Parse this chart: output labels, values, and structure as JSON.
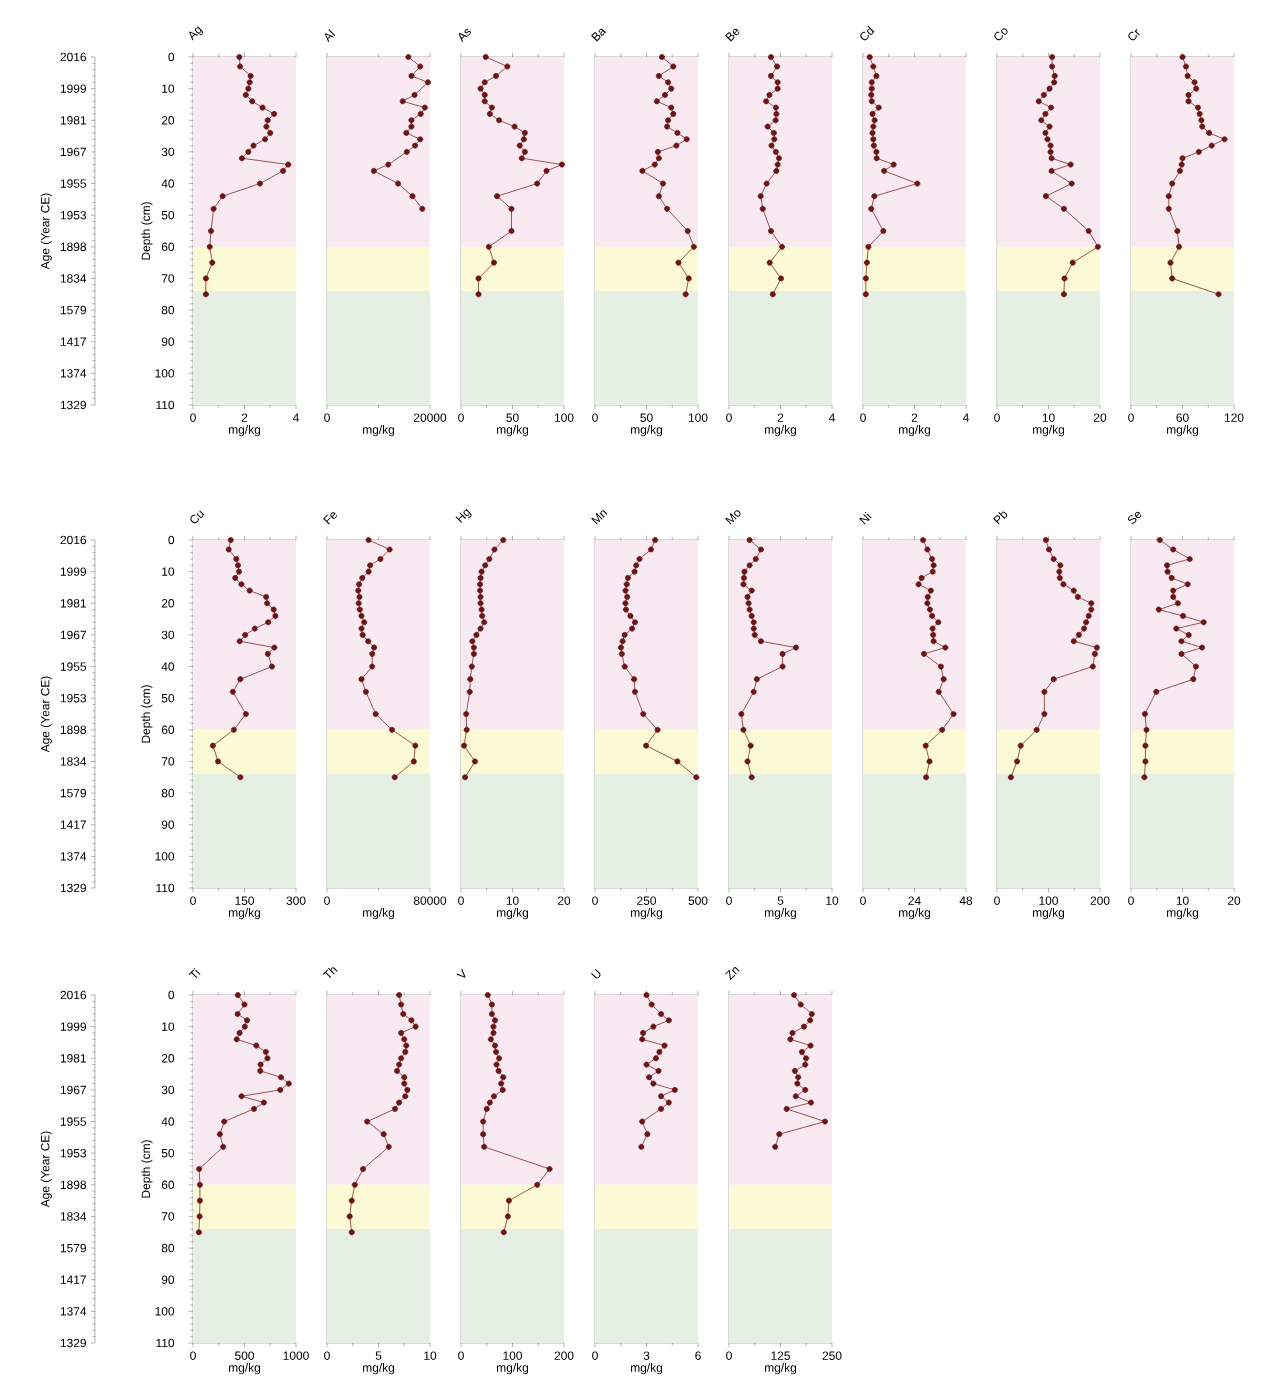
{
  "chart_data": [
    {
      "type": "line",
      "title": "Ag",
      "xlabel": "mg/kg",
      "ylabel": "Depth (cm)",
      "y2label": "Age (Year CE)",
      "xlim": [
        0,
        4
      ],
      "xticks": [
        0,
        2,
        4
      ],
      "ylim": [
        110,
        0
      ],
      "yticks": [
        0,
        10,
        20,
        30,
        40,
        50,
        60,
        70,
        80,
        90,
        100,
        110
      ],
      "y2_categories": [
        "2016",
        "1999",
        "1981",
        "1967",
        "1955",
        "1953",
        "1898",
        "1834",
        "1579",
        "1417",
        "1374",
        "1329"
      ],
      "marker": "circle",
      "bands": [
        {
          "axis": "y",
          "from": 0,
          "to": 60,
          "color": "#f9e9f1"
        },
        {
          "axis": "y",
          "from": 60,
          "to": 74,
          "color": "#fcfad4"
        },
        {
          "axis": "y",
          "from": 74,
          "to": 110,
          "color": "#e5efe3"
        }
      ],
      "series": [
        {
          "color": "#6b1515",
          "x": [
            1.8,
            1.83,
            2.24,
            2.2,
            2.15,
            2.05,
            2.3,
            2.7,
            3.15,
            2.9,
            2.85,
            3.0,
            2.8,
            2.35,
            2.15,
            1.9,
            3.7,
            3.5,
            2.6,
            1.15,
            0.8,
            0.7,
            0.65,
            0.75,
            0.5,
            0.5
          ],
          "values": [
            0,
            3,
            6,
            8,
            10,
            12,
            14,
            16,
            18,
            20,
            22,
            24,
            26,
            28,
            30,
            32,
            34,
            36,
            40,
            44,
            48,
            55,
            60,
            65,
            70,
            75
          ]
        }
      ]
    },
    {
      "type": "line",
      "title": "Al",
      "xlabel": "mg/kg",
      "xlim": [
        0,
        20000
      ],
      "xticks": [
        0,
        20000
      ],
      "ylim": [
        110,
        0
      ],
      "tick_labels": "x",
      "marker": "circle",
      "bands": [
        {
          "axis": "y",
          "from": 0,
          "to": 60,
          "color": "#f9e9f1"
        },
        {
          "axis": "y",
          "from": 60,
          "to": 74,
          "color": "#fcfad4"
        },
        {
          "axis": "y",
          "from": 74,
          "to": 110,
          "color": "#e5efe3"
        }
      ],
      "series": [
        {
          "color": "#6b1515",
          "x": [
            15800,
            18100,
            16400,
            19600,
            17000,
            14700,
            19000,
            18200,
            16400,
            16400,
            15400,
            18100,
            17100,
            15500,
            11900,
            9100,
            13800,
            16600,
            18500
          ],
          "values": [
            0,
            3,
            6,
            8,
            12,
            14,
            16,
            18,
            20,
            22,
            24,
            26,
            28,
            30,
            34,
            36,
            40,
            44,
            48
          ]
        }
      ]
    },
    {
      "type": "line",
      "title": "As",
      "xlabel": "mg/kg",
      "xlim": [
        0,
        100
      ],
      "xticks": [
        0,
        50,
        100
      ],
      "ylim": [
        110,
        0
      ],
      "tick_labels": "x",
      "marker": "circle",
      "bands": [
        {
          "axis": "y",
          "from": 0,
          "to": 60,
          "color": "#f9e9f1"
        },
        {
          "axis": "y",
          "from": 60,
          "to": 74,
          "color": "#fcfad4"
        },
        {
          "axis": "y",
          "from": 74,
          "to": 110,
          "color": "#e5efe3"
        }
      ],
      "series": [
        {
          "color": "#6b1515",
          "x": [
            24,
            45,
            34,
            23,
            19,
            23,
            23,
            30,
            28,
            37,
            52,
            62,
            61,
            57,
            62,
            59,
            98,
            83,
            74,
            35,
            49,
            49,
            27,
            32,
            17,
            17
          ],
          "values": [
            0,
            3,
            6,
            8,
            10,
            12,
            14,
            16,
            18,
            20,
            22,
            24,
            26,
            28,
            30,
            32,
            34,
            36,
            40,
            44,
            48,
            55,
            60,
            65,
            70,
            75
          ]
        }
      ]
    },
    {
      "type": "line",
      "title": "Ba",
      "xlabel": "mg/kg",
      "xlim": [
        0,
        100
      ],
      "xticks": [
        0,
        50,
        100
      ],
      "ylim": [
        110,
        0
      ],
      "tick_labels": "x",
      "marker": "circle",
      "bands": [
        {
          "axis": "y",
          "from": 0,
          "to": 60,
          "color": "#f9e9f1"
        },
        {
          "axis": "y",
          "from": 60,
          "to": 74,
          "color": "#fcfad4"
        },
        {
          "axis": "y",
          "from": 74,
          "to": 110,
          "color": "#e5efe3"
        }
      ],
      "series": [
        {
          "color": "#6b1515",
          "x": [
            65,
            76,
            62,
            71,
            74,
            68,
            60,
            74,
            76,
            71,
            70,
            80,
            89,
            79,
            61,
            62,
            58,
            46,
            66,
            62,
            70,
            90,
            96,
            81,
            91,
            88
          ],
          "values": [
            0,
            3,
            6,
            8,
            10,
            12,
            14,
            16,
            18,
            20,
            22,
            24,
            26,
            28,
            30,
            32,
            34,
            36,
            40,
            44,
            48,
            55,
            60,
            65,
            70,
            75
          ]
        }
      ]
    },
    {
      "type": "line",
      "title": "Be",
      "xlabel": "mg/kg",
      "xlim": [
        0,
        4
      ],
      "xticks": [
        0,
        2,
        4
      ],
      "ylim": [
        110,
        0
      ],
      "tick_labels": "x",
      "marker": "circle",
      "bands": [
        {
          "axis": "y",
          "from": 0,
          "to": 60,
          "color": "#f9e9f1"
        },
        {
          "axis": "y",
          "from": 60,
          "to": 74,
          "color": "#fcfad4"
        },
        {
          "axis": "y",
          "from": 74,
          "to": 110,
          "color": "#e5efe3"
        }
      ],
      "series": [
        {
          "color": "#6b1515",
          "x": [
            1.63,
            1.87,
            1.63,
            1.89,
            1.89,
            1.57,
            1.44,
            1.82,
            1.84,
            1.81,
            1.5,
            1.74,
            1.76,
            1.65,
            1.82,
            1.94,
            1.89,
            1.84,
            1.46,
            1.23,
            1.31,
            1.63,
            2.06,
            1.58,
            2.02,
            1.7
          ],
          "values": [
            0,
            3,
            6,
            8,
            10,
            12,
            14,
            16,
            18,
            20,
            22,
            24,
            26,
            28,
            30,
            32,
            34,
            36,
            40,
            44,
            48,
            55,
            60,
            65,
            70,
            75
          ]
        }
      ]
    },
    {
      "type": "line",
      "title": "Cd",
      "xlabel": "mg/kg",
      "xlim": [
        0,
        4
      ],
      "xticks": [
        0,
        2,
        4
      ],
      "ylim": [
        110,
        0
      ],
      "tick_labels": "x",
      "marker": "circle",
      "bands": [
        {
          "axis": "y",
          "from": 0,
          "to": 60,
          "color": "#f9e9f1"
        },
        {
          "axis": "y",
          "from": 60,
          "to": 74,
          "color": "#fcfad4"
        },
        {
          "axis": "y",
          "from": 74,
          "to": 110,
          "color": "#e5efe3"
        }
      ],
      "series": [
        {
          "color": "#6b1515",
          "x": [
            0.26,
            0.4,
            0.52,
            0.34,
            0.34,
            0.32,
            0.34,
            0.61,
            0.37,
            0.45,
            0.4,
            0.37,
            0.4,
            0.42,
            0.52,
            0.53,
            1.19,
            0.82,
            2.11,
            0.44,
            0.32,
            0.79,
            0.21,
            0.15,
            0.11,
            0.11
          ],
          "values": [
            0,
            3,
            6,
            8,
            10,
            12,
            14,
            16,
            18,
            20,
            22,
            24,
            26,
            28,
            30,
            32,
            34,
            36,
            40,
            44,
            48,
            55,
            60,
            65,
            70,
            75
          ]
        }
      ]
    },
    {
      "type": "line",
      "title": "Co",
      "xlabel": "mg/kg",
      "xlim": [
        0,
        20
      ],
      "xticks": [
        0,
        10,
        20
      ],
      "ylim": [
        110,
        0
      ],
      "tick_labels": "x",
      "marker": "circle",
      "bands": [
        {
          "axis": "y",
          "from": 0,
          "to": 60,
          "color": "#f9e9f1"
        },
        {
          "axis": "y",
          "from": 60,
          "to": 74,
          "color": "#fcfad4"
        },
        {
          "axis": "y",
          "from": 74,
          "to": 110,
          "color": "#e5efe3"
        }
      ],
      "series": [
        {
          "color": "#6b1515",
          "x": [
            10.7,
            10.7,
            11.2,
            11.1,
            10.2,
            9.1,
            8.1,
            10.5,
            9.4,
            8.6,
            10.2,
            9.4,
            9.8,
            10.4,
            10.4,
            10.6,
            14.3,
            10.6,
            14.5,
            9.5,
            13,
            17.8,
            19.6,
            14.7,
            13.1,
            13
          ],
          "values": [
            0,
            3,
            6,
            8,
            10,
            12,
            14,
            16,
            18,
            20,
            22,
            24,
            26,
            28,
            30,
            32,
            34,
            36,
            40,
            44,
            48,
            55,
            60,
            65,
            70,
            75
          ]
        }
      ]
    },
    {
      "type": "line",
      "title": "Cr",
      "xlabel": "mg/kg",
      "xlim": [
        0,
        120
      ],
      "xticks": [
        0,
        60,
        120
      ],
      "ylim": [
        110,
        0
      ],
      "tick_labels": "x",
      "marker": "circle",
      "bands": [
        {
          "axis": "y",
          "from": 0,
          "to": 60,
          "color": "#f9e9f1"
        },
        {
          "axis": "y",
          "from": 60,
          "to": 74,
          "color": "#fcfad4"
        },
        {
          "axis": "y",
          "from": 74,
          "to": 110,
          "color": "#e5efe3"
        }
      ],
      "series": [
        {
          "color": "#6b1515",
          "x": [
            60,
            64,
            66,
            74,
            76,
            67,
            67,
            78,
            80,
            82,
            83,
            91,
            109,
            94,
            79,
            60,
            59,
            57,
            48,
            44,
            44,
            54,
            56,
            46,
            48,
            102
          ],
          "values": [
            0,
            3,
            6,
            8,
            10,
            12,
            14,
            16,
            18,
            20,
            22,
            24,
            26,
            28,
            30,
            32,
            34,
            36,
            40,
            44,
            48,
            55,
            60,
            65,
            70,
            75
          ]
        }
      ]
    },
    {
      "type": "line",
      "title": "Cu",
      "xlabel": "mg/kg",
      "ylabel": "Depth (cm)",
      "y2label": "Age (Year CE)",
      "xlim": [
        0,
        300
      ],
      "xticks": [
        0,
        150,
        300
      ],
      "ylim": [
        110,
        0
      ],
      "yticks": [
        0,
        10,
        20,
        30,
        40,
        50,
        60,
        70,
        80,
        90,
        100,
        110
      ],
      "y2_categories": [
        "2016",
        "1999",
        "1981",
        "1967",
        "1955",
        "1953",
        "1898",
        "1834",
        "1579",
        "1417",
        "1374",
        "1329"
      ],
      "marker": "circle",
      "bands": [
        {
          "axis": "y",
          "from": 0,
          "to": 60,
          "color": "#f9e9f1"
        },
        {
          "axis": "y",
          "from": 60,
          "to": 74,
          "color": "#fcfad4"
        },
        {
          "axis": "y",
          "from": 74,
          "to": 110,
          "color": "#e5efe3"
        }
      ],
      "series": [
        {
          "color": "#6b1515",
          "x": [
            110,
            104,
            126,
            131,
            134,
            123,
            141,
            165,
            213,
            216,
            235,
            240,
            219,
            180,
            152,
            136,
            237,
            218,
            230,
            138,
            116,
            154,
            119,
            58,
            73,
            138
          ],
          "values": [
            0,
            3,
            6,
            8,
            10,
            12,
            14,
            16,
            18,
            20,
            22,
            24,
            26,
            28,
            30,
            32,
            34,
            36,
            40,
            44,
            48,
            55,
            60,
            65,
            70,
            75
          ]
        }
      ]
    },
    {
      "type": "line",
      "title": "Fe",
      "xlabel": "mg/kg",
      "xlim": [
        0,
        80000
      ],
      "xticks": [
        0,
        80000
      ],
      "ylim": [
        110,
        0
      ],
      "tick_labels": "x",
      "marker": "circle",
      "bands": [
        {
          "axis": "y",
          "from": 0,
          "to": 60,
          "color": "#f9e9f1"
        },
        {
          "axis": "y",
          "from": 60,
          "to": 74,
          "color": "#fcfad4"
        },
        {
          "axis": "y",
          "from": 74,
          "to": 110,
          "color": "#e5efe3"
        }
      ],
      "series": [
        {
          "color": "#6b1515",
          "x": [
            32300,
            48600,
            41500,
            33500,
            32300,
            27400,
            24900,
            24300,
            25200,
            24600,
            25500,
            26800,
            28900,
            26800,
            27700,
            32000,
            36600,
            35100,
            35100,
            26800,
            30200,
            37800,
            50500,
            68600,
            67400,
            52600
          ],
          "values": [
            0,
            3,
            6,
            8,
            10,
            12,
            14,
            16,
            18,
            20,
            22,
            24,
            26,
            28,
            30,
            32,
            34,
            36,
            40,
            44,
            48,
            55,
            60,
            65,
            70,
            75
          ]
        }
      ]
    },
    {
      "type": "line",
      "title": "Hg",
      "xlabel": "mg/kg",
      "xlim": [
        0,
        20
      ],
      "xticks": [
        0,
        10,
        20
      ],
      "ylim": [
        110,
        0
      ],
      "tick_labels": "x",
      "marker": "circle",
      "bands": [
        {
          "axis": "y",
          "from": 0,
          "to": 60,
          "color": "#f9e9f1"
        },
        {
          "axis": "y",
          "from": 60,
          "to": 74,
          "color": "#fcfad4"
        },
        {
          "axis": "y",
          "from": 74,
          "to": 110,
          "color": "#e5efe3"
        }
      ],
      "series": [
        {
          "color": "#6b1515",
          "x": [
            8.2,
            6.5,
            5.5,
            4.7,
            4.0,
            3.8,
            3.7,
            3.7,
            3.8,
            3.8,
            4.0,
            4.1,
            4.5,
            3.8,
            3.0,
            2.2,
            2.5,
            2.5,
            2.1,
            1.8,
            1.7,
            1.0,
            1.1,
            0.6,
            2.7,
            0.8
          ],
          "values": [
            0,
            3,
            6,
            8,
            10,
            12,
            14,
            16,
            18,
            20,
            22,
            24,
            26,
            28,
            30,
            32,
            34,
            36,
            40,
            44,
            48,
            55,
            60,
            65,
            70,
            75
          ]
        }
      ]
    },
    {
      "type": "line",
      "title": "Mn",
      "xlabel": "mg/kg",
      "xlim": [
        0,
        500
      ],
      "xticks": [
        0,
        250,
        500
      ],
      "ylim": [
        110,
        0
      ],
      "tick_labels": "x",
      "marker": "circle",
      "bands": [
        {
          "axis": "y",
          "from": 0,
          "to": 60,
          "color": "#f9e9f1"
        },
        {
          "axis": "y",
          "from": 60,
          "to": 74,
          "color": "#fcfad4"
        },
        {
          "axis": "y",
          "from": 74,
          "to": 110,
          "color": "#e5efe3"
        }
      ],
      "series": [
        {
          "color": "#6b1515",
          "x": [
            292,
            272,
            216,
            200,
            192,
            160,
            154,
            148,
            156,
            148,
            150,
            172,
            194,
            180,
            144,
            134,
            126,
            130,
            144,
            190,
            194,
            234,
            304,
            248,
            400,
            492
          ],
          "values": [
            0,
            3,
            6,
            8,
            10,
            12,
            14,
            16,
            18,
            20,
            22,
            24,
            26,
            28,
            30,
            32,
            34,
            36,
            40,
            44,
            48,
            55,
            60,
            65,
            70,
            75
          ]
        }
      ]
    },
    {
      "type": "line",
      "title": "Mo",
      "xlabel": "mg/kg",
      "xlim": [
        0,
        10
      ],
      "xticks": [
        0,
        5,
        10
      ],
      "ylim": [
        110,
        0
      ],
      "tick_labels": "x",
      "marker": "circle",
      "bands": [
        {
          "axis": "y",
          "from": 0,
          "to": 60,
          "color": "#f9e9f1"
        },
        {
          "axis": "y",
          "from": 60,
          "to": 74,
          "color": "#fcfad4"
        },
        {
          "axis": "y",
          "from": 74,
          "to": 110,
          "color": "#e5efe3"
        }
      ],
      "series": [
        {
          "color": "#6b1515",
          "x": [
            2.0,
            3.1,
            2.6,
            2.0,
            1.5,
            1.45,
            1.4,
            2.2,
            1.8,
            1.9,
            2.0,
            2.2,
            2.4,
            2.4,
            2.5,
            3.1,
            6.5,
            5.2,
            5.2,
            2.7,
            2.4,
            1.2,
            1.4,
            2.1,
            1.8,
            2.2
          ],
          "values": [
            0,
            3,
            6,
            8,
            10,
            12,
            14,
            16,
            18,
            20,
            22,
            24,
            26,
            28,
            30,
            32,
            34,
            36,
            40,
            44,
            48,
            55,
            60,
            65,
            70,
            75
          ]
        }
      ]
    },
    {
      "type": "line",
      "title": "Ni",
      "xlabel": "mg/kg",
      "xlim": [
        0,
        48
      ],
      "xticks": [
        0,
        24,
        48
      ],
      "ylim": [
        110,
        0
      ],
      "tick_labels": "x",
      "marker": "circle",
      "bands": [
        {
          "axis": "y",
          "from": 0,
          "to": 60,
          "color": "#f9e9f1"
        },
        {
          "axis": "y",
          "from": 60,
          "to": 74,
          "color": "#fcfad4"
        },
        {
          "axis": "y",
          "from": 74,
          "to": 110,
          "color": "#e5efe3"
        }
      ],
      "series": [
        {
          "color": "#6b1515",
          "x": [
            28.0,
            30.0,
            32.2,
            32.9,
            32.5,
            27.3,
            25.9,
            31.6,
            30.2,
            30.0,
            31.2,
            32.2,
            35.1,
            32.4,
            32.7,
            32.9,
            38.4,
            28.4,
            36.3,
            37.6,
            35.3,
            42.2,
            36.9,
            29.2,
            31.0,
            29.4
          ],
          "values": [
            0,
            3,
            6,
            8,
            10,
            12,
            14,
            16,
            18,
            20,
            22,
            24,
            26,
            28,
            30,
            32,
            34,
            36,
            40,
            44,
            48,
            55,
            60,
            65,
            70,
            75
          ]
        }
      ]
    },
    {
      "type": "line",
      "title": "Pb",
      "xlabel": "mg/kg",
      "xlim": [
        0,
        200
      ],
      "xticks": [
        0,
        100,
        200
      ],
      "ylim": [
        110,
        0
      ],
      "tick_labels": "x",
      "marker": "circle",
      "bands": [
        {
          "axis": "y",
          "from": 0,
          "to": 60,
          "color": "#f9e9f1"
        },
        {
          "axis": "y",
          "from": 60,
          "to": 74,
          "color": "#fcfad4"
        },
        {
          "axis": "y",
          "from": 74,
          "to": 110,
          "color": "#e5efe3"
        }
      ],
      "series": [
        {
          "color": "#6b1515",
          "x": [
            95,
            101,
            110,
            123,
            121,
            122,
            129,
            149,
            157,
            183,
            183,
            178,
            173,
            169,
            159,
            149,
            194,
            190,
            186,
            110,
            92,
            92,
            77,
            46,
            39,
            27
          ],
          "values": [
            0,
            3,
            6,
            8,
            10,
            12,
            14,
            16,
            18,
            20,
            22,
            24,
            26,
            28,
            30,
            32,
            34,
            36,
            40,
            44,
            48,
            55,
            60,
            65,
            70,
            75
          ]
        }
      ]
    },
    {
      "type": "line",
      "title": "Se",
      "xlabel": "mg/kg",
      "xlim": [
        0,
        20
      ],
      "xticks": [
        0,
        10,
        20
      ],
      "ylim": [
        110,
        0
      ],
      "tick_labels": "x",
      "marker": "circle",
      "bands": [
        {
          "axis": "y",
          "from": 0,
          "to": 60,
          "color": "#f9e9f1"
        },
        {
          "axis": "y",
          "from": 60,
          "to": 74,
          "color": "#fcfad4"
        },
        {
          "axis": "y",
          "from": 74,
          "to": 110,
          "color": "#e5efe3"
        }
      ],
      "series": [
        {
          "color": "#6b1515",
          "x": [
            5.6,
            8.2,
            11.4,
            7.0,
            7.1,
            7.9,
            11.0,
            8.2,
            8.2,
            9.1,
            5.4,
            10.1,
            14.1,
            8.8,
            11.2,
            9.8,
            13.8,
            9.8,
            12.6,
            12.1,
            4.9,
            2.7,
            3.0,
            2.8,
            2.8,
            2.6
          ],
          "values": [
            0,
            3,
            6,
            8,
            10,
            12,
            14,
            16,
            18,
            20,
            22,
            24,
            26,
            28,
            30,
            32,
            34,
            36,
            40,
            44,
            48,
            55,
            60,
            65,
            70,
            75
          ]
        }
      ]
    },
    {
      "type": "line",
      "title": "Ti",
      "xlabel": "mg/kg",
      "ylabel": "Depth (cm)",
      "y2label": "Age (Year CE)",
      "xlim": [
        0,
        1000
      ],
      "xticks": [
        0,
        500,
        1000
      ],
      "ylim": [
        110,
        0
      ],
      "yticks": [
        0,
        10,
        20,
        30,
        40,
        50,
        60,
        70,
        80,
        90,
        100,
        110
      ],
      "y2_categories": [
        "2016",
        "1999",
        "1981",
        "1967",
        "1955",
        "1953",
        "1898",
        "1834",
        "1579",
        "1417",
        "1374",
        "1329"
      ],
      "marker": "circle",
      "bands": [
        {
          "axis": "y",
          "from": 0,
          "to": 60,
          "color": "#f9e9f1"
        },
        {
          "axis": "y",
          "from": 60,
          "to": 74,
          "color": "#fcfad4"
        },
        {
          "axis": "y",
          "from": 74,
          "to": 110,
          "color": "#e5efe3"
        }
      ],
      "series": [
        {
          "color": "#6b1515",
          "x": [
            436,
            500,
            433,
            525,
            503,
            452,
            424,
            615,
            707,
            723,
            656,
            653,
            854,
            930,
            847,
            471,
            688,
            592,
            303,
            261,
            293,
            60,
            67,
            67,
            64,
            57
          ],
          "values": [
            0,
            3,
            6,
            8,
            10,
            12,
            14,
            16,
            18,
            20,
            22,
            24,
            26,
            28,
            30,
            32,
            34,
            36,
            40,
            44,
            48,
            55,
            60,
            65,
            70,
            75
          ]
        }
      ]
    },
    {
      "type": "line",
      "title": "Th",
      "xlabel": "mg/kg",
      "xlim": [
        0,
        10
      ],
      "xticks": [
        0,
        5,
        10
      ],
      "ylim": [
        110,
        0
      ],
      "tick_labels": "x",
      "marker": "circle",
      "bands": [
        {
          "axis": "y",
          "from": 0,
          "to": 60,
          "color": "#f9e9f1"
        },
        {
          "axis": "y",
          "from": 60,
          "to": 74,
          "color": "#fcfad4"
        },
        {
          "axis": "y",
          "from": 74,
          "to": 110,
          "color": "#e5efe3"
        }
      ],
      "series": [
        {
          "color": "#6b1515",
          "x": [
            7.0,
            7.2,
            7.4,
            8.2,
            8.6,
            7.2,
            7.5,
            7.7,
            7.6,
            7.2,
            7.0,
            6.8,
            7.5,
            7.5,
            7.8,
            7.6,
            7.0,
            6.6,
            3.9,
            5.5,
            6.0,
            3.5,
            2.7,
            2.4,
            2.2,
            2.4
          ],
          "values": [
            0,
            3,
            6,
            8,
            10,
            12,
            14,
            16,
            18,
            20,
            22,
            24,
            26,
            28,
            30,
            32,
            34,
            36,
            40,
            44,
            48,
            55,
            60,
            65,
            70,
            75
          ]
        }
      ]
    },
    {
      "type": "line",
      "title": "V",
      "xlabel": "mg/kg",
      "xlim": [
        0,
        200
      ],
      "xticks": [
        0,
        100,
        200
      ],
      "ylim": [
        110,
        0
      ],
      "tick_labels": "x",
      "marker": "circle",
      "bands": [
        {
          "axis": "y",
          "from": 0,
          "to": 60,
          "color": "#f9e9f1"
        },
        {
          "axis": "y",
          "from": 60,
          "to": 74,
          "color": "#fcfad4"
        },
        {
          "axis": "y",
          "from": 74,
          "to": 110,
          "color": "#e5efe3"
        }
      ],
      "series": [
        {
          "color": "#6b1515",
          "x": [
            52,
            60,
            60,
            66,
            63,
            63,
            58,
            66,
            68,
            74,
            69,
            73,
            82,
            78,
            81,
            64,
            56,
            50,
            43,
            43,
            45,
            172,
            148,
            93,
            91,
            83
          ],
          "values": [
            0,
            3,
            6,
            8,
            10,
            12,
            14,
            16,
            18,
            20,
            22,
            24,
            26,
            28,
            30,
            32,
            34,
            36,
            40,
            44,
            48,
            55,
            60,
            65,
            70,
            75
          ]
        }
      ]
    },
    {
      "type": "line",
      "title": "U",
      "xlabel": "mg/kg",
      "xlim": [
        0,
        6
      ],
      "xticks": [
        0,
        3,
        6
      ],
      "ylim": [
        110,
        0
      ],
      "tick_labels": "x",
      "marker": "circle",
      "bands": [
        {
          "axis": "y",
          "from": 0,
          "to": 60,
          "color": "#f9e9f1"
        },
        {
          "axis": "y",
          "from": 60,
          "to": 74,
          "color": "#fcfad4"
        },
        {
          "axis": "y",
          "from": 74,
          "to": 110,
          "color": "#e5efe3"
        }
      ],
      "series": [
        {
          "color": "#6b1515",
          "x": [
            3.0,
            3.3,
            3.85,
            4.3,
            3.4,
            2.8,
            2.75,
            4.05,
            3.75,
            3.55,
            3.0,
            3.7,
            3.15,
            3.4,
            4.65,
            3.85,
            4.3,
            3.85,
            2.75,
            3.05,
            2.7
          ],
          "values": [
            0,
            3,
            6,
            8,
            10,
            12,
            14,
            16,
            18,
            20,
            22,
            24,
            26,
            28,
            30,
            32,
            34,
            36,
            40,
            44,
            48
          ]
        }
      ]
    },
    {
      "type": "line",
      "title": "Zn",
      "xlabel": "mg/kg",
      "xlim": [
        0,
        250
      ],
      "xticks": [
        0,
        125,
        250
      ],
      "ylim": [
        110,
        0
      ],
      "tick_labels": "x",
      "marker": "circle",
      "bands": [
        {
          "axis": "y",
          "from": 0,
          "to": 60,
          "color": "#f9e9f1"
        },
        {
          "axis": "y",
          "from": 60,
          "to": 74,
          "color": "#fcfad4"
        },
        {
          "axis": "y",
          "from": 74,
          "to": 110,
          "color": "#e5efe3"
        }
      ],
      "series": [
        {
          "color": "#6b1515",
          "x": [
            158,
            174,
            201,
            197,
            182,
            154,
            149,
            198,
            177,
            187,
            185,
            160,
            168,
            166,
            185,
            162,
            199,
            140,
            233,
            122,
            112
          ],
          "values": [
            0,
            3,
            6,
            8,
            10,
            12,
            14,
            16,
            18,
            20,
            22,
            24,
            26,
            28,
            30,
            32,
            34,
            36,
            40,
            44,
            48
          ]
        }
      ]
    }
  ]
}
